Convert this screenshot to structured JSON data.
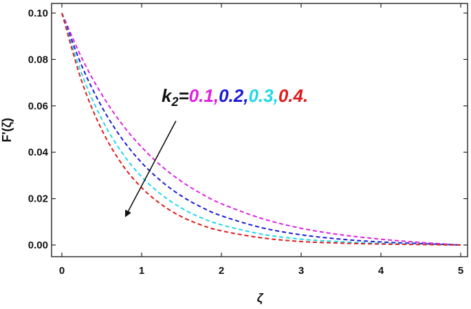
{
  "chart_data": {
    "type": "line",
    "title": "",
    "xlabel": "ζ",
    "ylabel": "F'(ζ)",
    "xlim": [
      0,
      5
    ],
    "ylim": [
      0,
      0.1
    ],
    "x_ticks": [
      "0",
      "1",
      "2",
      "3",
      "4",
      "5"
    ],
    "y_ticks": [
      "0.00",
      "0.02",
      "0.04",
      "0.06",
      "0.08",
      "0.10"
    ],
    "grid": false,
    "line_style": "dashed",
    "x": [
      0,
      0.25,
      0.5,
      0.75,
      1.0,
      1.25,
      1.5,
      1.75,
      2.0,
      2.5,
      3.0,
      3.5,
      4.0,
      4.5,
      5.0
    ],
    "series": [
      {
        "k2": "0.1",
        "color": "#e020e0",
        "values": [
          0.1,
          0.0806,
          0.0649,
          0.0523,
          0.0422,
          0.034,
          0.0274,
          0.0221,
          0.0178,
          0.0115,
          0.0072,
          0.0044,
          0.0025,
          0.0011,
          0.0
        ]
      },
      {
        "k2": "0.2",
        "color": "#1a1ad6",
        "values": [
          0.1,
          0.0772,
          0.0596,
          0.046,
          0.0355,
          0.0274,
          0.0211,
          0.0163,
          0.0126,
          0.0075,
          0.0044,
          0.0025,
          0.0013,
          0.0006,
          0.0
        ]
      },
      {
        "k2": "0.3",
        "color": "#22d8e8",
        "values": [
          0.1,
          0.0737,
          0.0543,
          0.04,
          0.0294,
          0.0217,
          0.0159,
          0.0117,
          0.0087,
          0.0047,
          0.0025,
          0.0014,
          0.0007,
          0.0003,
          0.0
        ]
      },
      {
        "k2": "0.4",
        "color": "#e01a1a",
        "values": [
          0.1,
          0.0705,
          0.0497,
          0.035,
          0.0247,
          0.0174,
          0.0122,
          0.0086,
          0.0061,
          0.0031,
          0.0015,
          0.0008,
          0.0004,
          0.0002,
          0.0
        ]
      }
    ],
    "annotation": {
      "label_prefix": "k",
      "label_subscript": "2",
      "label_equals": "=",
      "values": [
        "0.1",
        "0.2",
        "0.3",
        "0.4"
      ],
      "separator": ",",
      "terminator": ".",
      "prefix_color": "#111111",
      "arrow_direction": "increasing k2, velocity decreases",
      "arrow_start": [
        1.43,
        0.0535
      ],
      "arrow_end": [
        0.8,
        0.0125
      ]
    }
  }
}
